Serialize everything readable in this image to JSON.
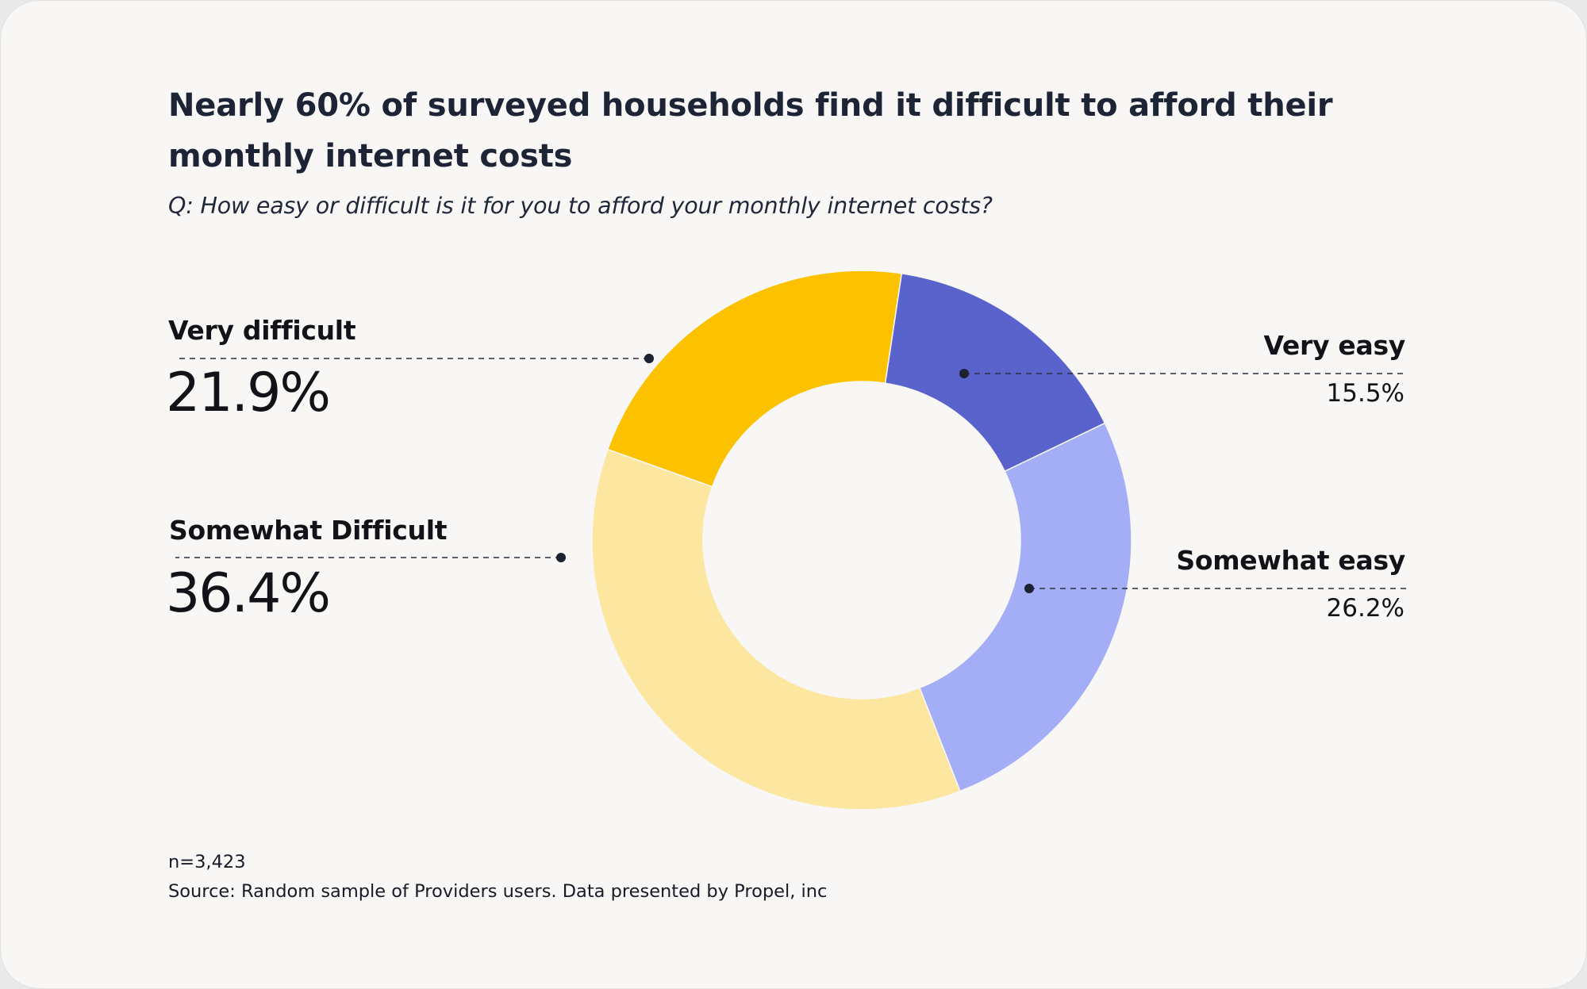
{
  "chart_data": {
    "type": "pie",
    "variant": "donut",
    "title": "Nearly 60% of surveyed households find it difficult to afford their monthly internet costs",
    "subtitle": "Q: How easy or difficult is it for you to afford your monthly internet costs?",
    "unit": "%",
    "slices": [
      {
        "key": "very_easy",
        "label": "Very easy",
        "value": 15.5,
        "display": "15.5%",
        "color": "#5a62cc"
      },
      {
        "key": "somewhat_easy",
        "label": "Somewhat easy",
        "value": 26.2,
        "display": "26.2%",
        "color": "#a4aef7"
      },
      {
        "key": "somewhat_difficult",
        "label": "Somewhat Difficult",
        "value": 36.4,
        "display": "36.4%",
        "color": "#fde69f"
      },
      {
        "key": "very_difficult",
        "label": "Very difficult",
        "value": 21.9,
        "display": "21.9%",
        "color": "#fcc200"
      }
    ],
    "start_angle_deg": 8.5
  },
  "footer": {
    "sample_size": "n=3,423",
    "source": "Source: Random sample of Providers users. Data presented by Propel, inc"
  }
}
